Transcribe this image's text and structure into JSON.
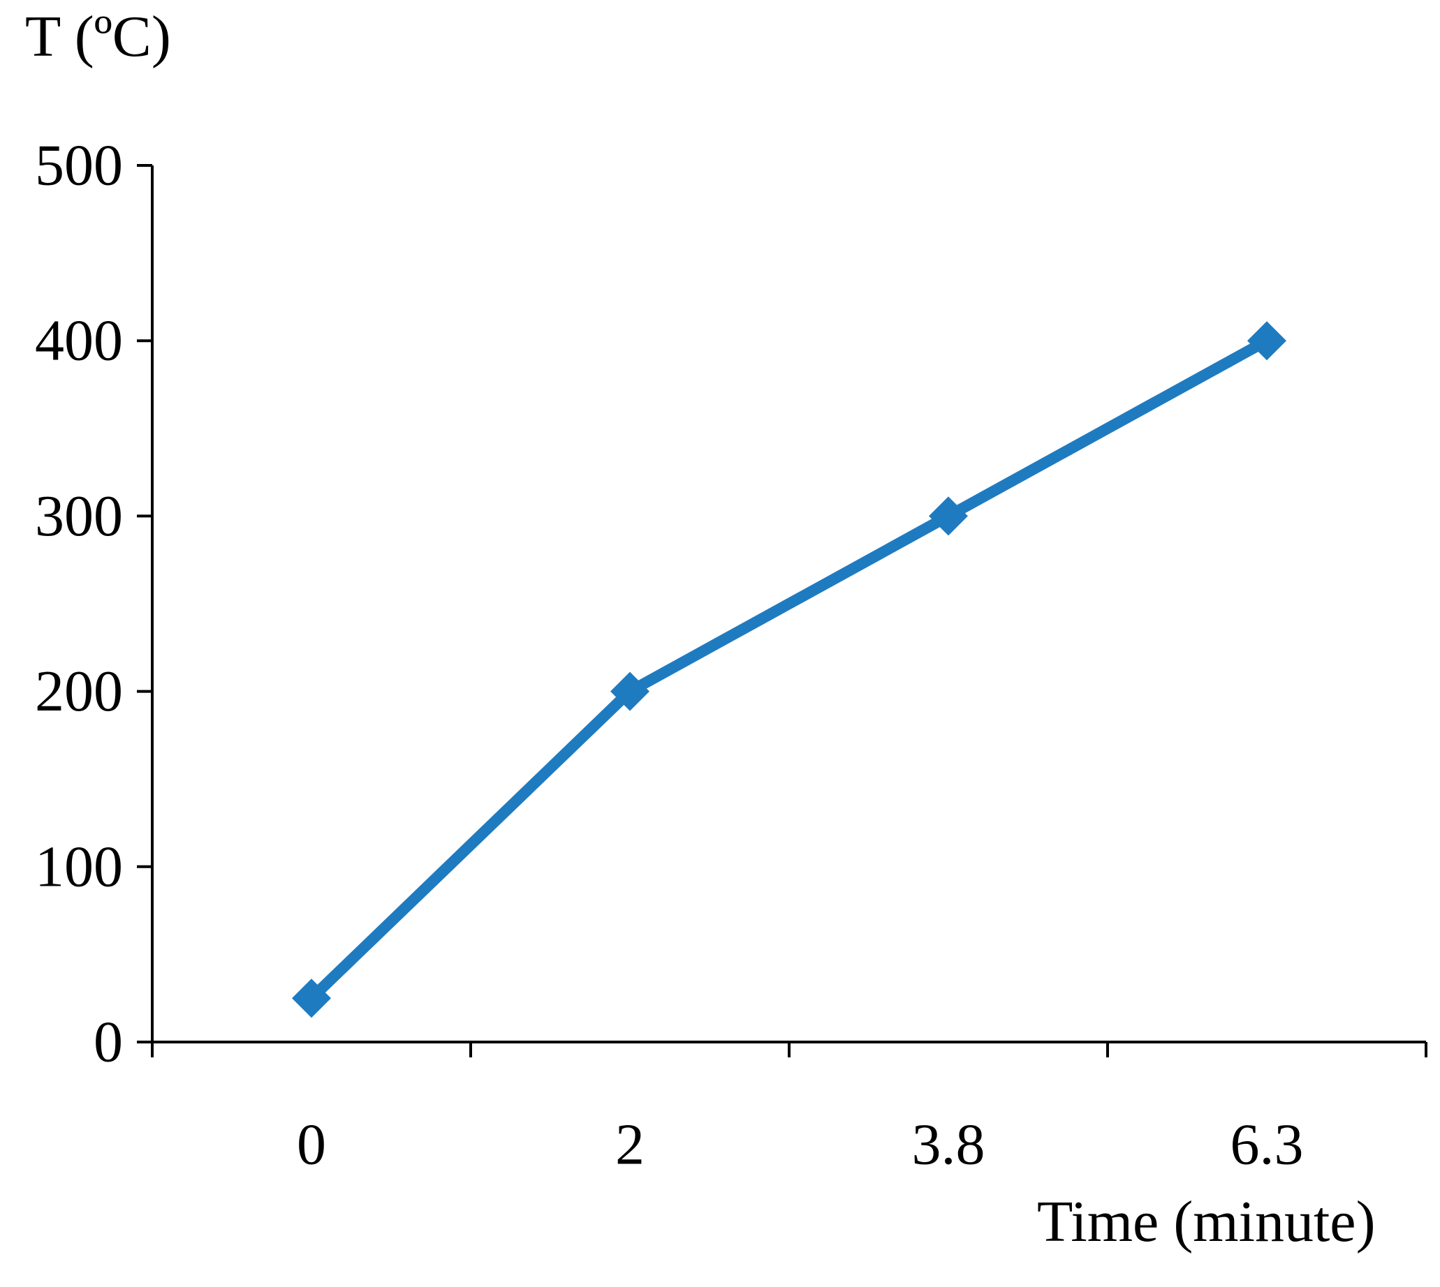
{
  "chart_data": {
    "type": "line",
    "title": "",
    "ylabel": "T (ºC)",
    "xlabel": "Time (minute)",
    "categories": [
      "0",
      "2",
      "3.8",
      "6.3"
    ],
    "ylim": [
      0,
      500
    ],
    "yticks": [
      0,
      100,
      200,
      300,
      400,
      500
    ],
    "series": [
      {
        "name": "T",
        "values": [
          25,
          200,
          300,
          400
        ],
        "color": "#1F7BC0",
        "marker": "diamond"
      }
    ],
    "grid": false,
    "legend": "none"
  }
}
